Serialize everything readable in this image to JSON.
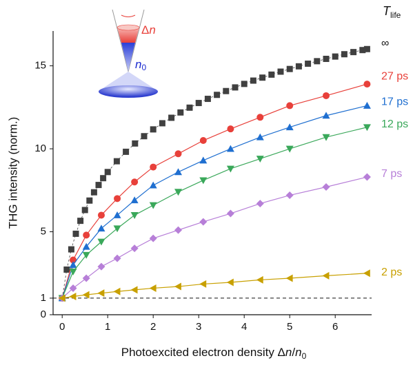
{
  "chart_data": {
    "type": "scatter",
    "xlabel": [
      "Photoexcited electron density Δ",
      "n",
      "/",
      "n",
      "0"
    ],
    "ylabel": "THG intensity (norm.)",
    "legend_title": {
      "main": "T",
      "sub": "life"
    },
    "inset_labels": {
      "delta": "Δ",
      "delta_n": "n",
      "base": "n",
      "base_sub": "0"
    },
    "xlim": [
      -0.2,
      6.8
    ],
    "xticks": [
      0,
      1,
      2,
      3,
      4,
      5,
      6
    ],
    "ylim": [
      0,
      17.1
    ],
    "yticks": [
      0,
      1,
      5,
      10,
      15
    ],
    "hline": 1,
    "series": [
      {
        "name": "∞",
        "color": "#404040",
        "marker": "square",
        "line": false,
        "x": [
          0,
          0.1,
          0.2,
          0.3,
          0.4,
          0.5,
          0.6,
          0.7,
          0.8,
          0.9,
          1.0,
          1.2,
          1.4,
          1.6,
          1.8,
          2.0,
          2.2,
          2.4,
          2.6,
          2.8,
          3.0,
          3.2,
          3.4,
          3.6,
          3.8,
          4.0,
          4.2,
          4.4,
          4.6,
          4.8,
          5.0,
          5.2,
          5.4,
          5.6,
          5.8,
          6.0,
          6.2,
          6.4,
          6.6,
          6.7
        ],
        "values": [
          1,
          2.72,
          3.94,
          4.88,
          5.66,
          6.31,
          6.88,
          7.38,
          7.82,
          8.23,
          8.6,
          9.25,
          9.82,
          10.32,
          10.76,
          11.17,
          11.54,
          11.87,
          12.19,
          12.48,
          12.76,
          13.01,
          13.25,
          13.48,
          13.7,
          13.91,
          14.11,
          14.29,
          14.47,
          14.65,
          14.81,
          14.97,
          15.13,
          15.28,
          15.42,
          15.56,
          15.7,
          15.83,
          15.95,
          16.01
        ]
      },
      {
        "name": "27 ps",
        "color": "#e8403a",
        "marker": "circle",
        "line": true,
        "x": [
          0,
          0.24,
          0.53,
          0.86,
          1.21,
          1.59,
          2.0,
          2.55,
          3.1,
          3.7,
          4.35,
          5.0,
          5.8,
          6.7
        ],
        "values": [
          1,
          3.3,
          4.8,
          6.0,
          7.0,
          8.0,
          8.9,
          9.7,
          10.5,
          11.2,
          11.9,
          12.6,
          13.2,
          13.9
        ]
      },
      {
        "name": "17 ps",
        "color": "#1f6fd0",
        "marker": "triangle-up",
        "line": true,
        "x": [
          0,
          0.24,
          0.53,
          0.86,
          1.21,
          1.59,
          2.0,
          2.55,
          3.1,
          3.7,
          4.35,
          5.0,
          5.8,
          6.7
        ],
        "values": [
          1,
          3.0,
          4.1,
          5.2,
          6.0,
          6.9,
          7.8,
          8.6,
          9.3,
          10.0,
          10.7,
          11.3,
          12.0,
          12.6
        ]
      },
      {
        "name": "12 ps",
        "color": "#3aa85a",
        "marker": "triangle-down",
        "line": true,
        "x": [
          0,
          0.24,
          0.53,
          0.86,
          1.21,
          1.59,
          2.0,
          2.55,
          3.1,
          3.7,
          4.35,
          5.0,
          5.8,
          6.7
        ],
        "values": [
          1,
          2.6,
          3.6,
          4.4,
          5.2,
          6.0,
          6.6,
          7.4,
          8.1,
          8.8,
          9.4,
          10.0,
          10.7,
          11.3
        ]
      },
      {
        "name": "7 ps",
        "color": "#b77fd8",
        "marker": "diamond",
        "line": true,
        "x": [
          0,
          0.24,
          0.53,
          0.86,
          1.21,
          1.59,
          2.0,
          2.55,
          3.1,
          3.7,
          4.35,
          5.0,
          5.8,
          6.7
        ],
        "values": [
          1,
          1.6,
          2.2,
          2.9,
          3.4,
          4.0,
          4.6,
          5.1,
          5.6,
          6.1,
          6.7,
          7.2,
          7.7,
          8.3
        ]
      },
      {
        "name": "2 ps",
        "color": "#c8a000",
        "marker": "triangle-left",
        "line": true,
        "x": [
          0,
          0.24,
          0.53,
          0.86,
          1.21,
          1.59,
          2.0,
          2.55,
          3.1,
          3.7,
          4.35,
          5.0,
          5.8,
          6.7
        ],
        "values": [
          1,
          1.1,
          1.2,
          1.3,
          1.4,
          1.5,
          1.6,
          1.7,
          1.85,
          1.95,
          2.1,
          2.2,
          2.35,
          2.5
        ]
      }
    ]
  }
}
